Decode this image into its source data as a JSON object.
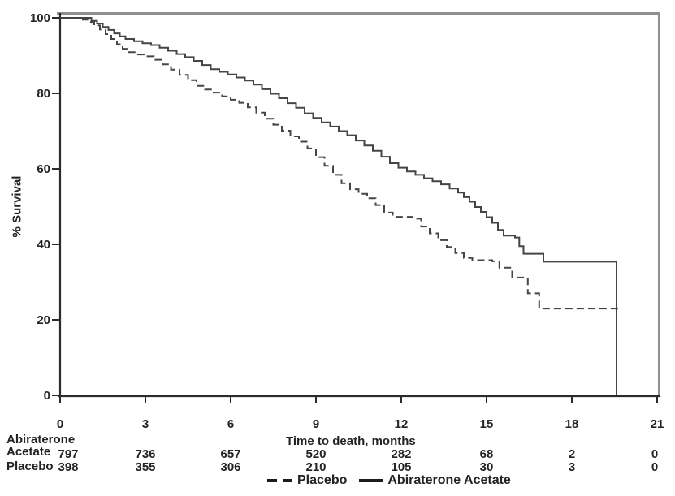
{
  "figure_title": "",
  "axes": {
    "y_title": "% Survival",
    "x_title": "Time to death, months",
    "y_ticks": [
      "100",
      "80",
      "60",
      "40",
      "20",
      "0"
    ],
    "x_ticks": [
      "0",
      "3",
      "6",
      "9",
      "12",
      "15",
      "18",
      "21"
    ]
  },
  "legend": {
    "placebo_label": "Placebo",
    "abiraterone_label": "Abiraterone Acetate"
  },
  "at_risk": {
    "row1_label_line1": "Abiraterone",
    "row1_label_line2": "Acetate",
    "row2_label": "Placebo",
    "rows": [
      {
        "name": "Abiraterone Acetate",
        "counts": [
          "797",
          "736",
          "657",
          "520",
          "282",
          "68",
          "2",
          "0"
        ]
      },
      {
        "name": "Placebo",
        "counts": [
          "398",
          "355",
          "306",
          "210",
          "105",
          "30",
          "3",
          "0"
        ]
      }
    ]
  },
  "colors": {
    "curve": "#454545",
    "frame_gray": "#8f8f8f",
    "axis_black": "#2b2b2b",
    "text": "#232323"
  },
  "chart_data": {
    "type": "line",
    "subtype": "kaplan-meier-step",
    "title": "",
    "xlabel": "Time to death, months",
    "ylabel": "% Survival",
    "xlim": [
      0,
      21
    ],
    "ylim": [
      0,
      100
    ],
    "x_tick_values": [
      0,
      3,
      6,
      9,
      12,
      15,
      18,
      21
    ],
    "y_tick_values": [
      0,
      20,
      40,
      60,
      80,
      100
    ],
    "grid": false,
    "legend_position": "bottom-center",
    "series": [
      {
        "name": "Abiraterone Acetate",
        "style": "solid",
        "n_at_risk": [
          797,
          736,
          657,
          520,
          282,
          68,
          2,
          0
        ],
        "points": [
          [
            0,
            100
          ],
          [
            0.9,
            100
          ],
          [
            1.1,
            99.2
          ],
          [
            1.3,
            98.5
          ],
          [
            1.5,
            97.6
          ],
          [
            1.7,
            96.8
          ],
          [
            1.9,
            95.9
          ],
          [
            2.1,
            95.1
          ],
          [
            2.3,
            94.4
          ],
          [
            2.6,
            93.8
          ],
          [
            2.9,
            93.3
          ],
          [
            3.2,
            92.8
          ],
          [
            3.5,
            92.1
          ],
          [
            3.8,
            91.3
          ],
          [
            4.1,
            90.4
          ],
          [
            4.4,
            89.6
          ],
          [
            4.7,
            88.6
          ],
          [
            5.0,
            87.5
          ],
          [
            5.3,
            86.4
          ],
          [
            5.6,
            85.7
          ],
          [
            5.9,
            85.0
          ],
          [
            6.2,
            84.2
          ],
          [
            6.5,
            83.4
          ],
          [
            6.8,
            82.3
          ],
          [
            7.1,
            81.1
          ],
          [
            7.4,
            79.9
          ],
          [
            7.7,
            78.7
          ],
          [
            8.0,
            77.4
          ],
          [
            8.3,
            76.2
          ],
          [
            8.6,
            74.7
          ],
          [
            8.9,
            73.5
          ],
          [
            9.2,
            72.3
          ],
          [
            9.5,
            71.2
          ],
          [
            9.8,
            70.0
          ],
          [
            10.1,
            68.9
          ],
          [
            10.4,
            67.5
          ],
          [
            10.7,
            66.2
          ],
          [
            11.0,
            64.8
          ],
          [
            11.3,
            63.2
          ],
          [
            11.6,
            61.5
          ],
          [
            11.9,
            60.3
          ],
          [
            12.2,
            59.3
          ],
          [
            12.5,
            58.4
          ],
          [
            12.8,
            57.5
          ],
          [
            13.1,
            56.7
          ],
          [
            13.4,
            55.9
          ],
          [
            13.7,
            54.8
          ],
          [
            14.0,
            53.7
          ],
          [
            14.2,
            52.5
          ],
          [
            14.4,
            51.3
          ],
          [
            14.6,
            49.9
          ],
          [
            14.8,
            48.6
          ],
          [
            15.0,
            47.2
          ],
          [
            15.2,
            45.7
          ],
          [
            15.4,
            43.8
          ],
          [
            15.6,
            42.3
          ],
          [
            16.0,
            41.8
          ],
          [
            16.15,
            39.5
          ],
          [
            16.3,
            37.5
          ],
          [
            17.0,
            35.4
          ],
          [
            19.57,
            35.4
          ],
          [
            19.57,
            0
          ]
        ]
      },
      {
        "name": "Placebo",
        "style": "dashed",
        "n_at_risk": [
          398,
          355,
          306,
          210,
          105,
          30,
          3,
          0
        ],
        "points": [
          [
            0,
            100
          ],
          [
            0.8,
            99.5
          ],
          [
            1.0,
            98.9
          ],
          [
            1.2,
            98.0
          ],
          [
            1.4,
            96.9
          ],
          [
            1.6,
            95.7
          ],
          [
            1.8,
            94.4
          ],
          [
            2.0,
            93.0
          ],
          [
            2.2,
            91.8
          ],
          [
            2.4,
            90.9
          ],
          [
            2.7,
            90.3
          ],
          [
            3.0,
            89.8
          ],
          [
            3.3,
            88.9
          ],
          [
            3.6,
            87.7
          ],
          [
            3.9,
            86.3
          ],
          [
            4.2,
            84.9
          ],
          [
            4.5,
            83.5
          ],
          [
            4.8,
            82.0
          ],
          [
            5.1,
            81.0
          ],
          [
            5.4,
            80.2
          ],
          [
            5.7,
            79.2
          ],
          [
            6.0,
            78.3
          ],
          [
            6.3,
            77.5
          ],
          [
            6.6,
            76.3
          ],
          [
            6.9,
            74.9
          ],
          [
            7.2,
            73.3
          ],
          [
            7.5,
            71.7
          ],
          [
            7.8,
            70.1
          ],
          [
            8.1,
            68.6
          ],
          [
            8.4,
            67.2
          ],
          [
            8.7,
            65.4
          ],
          [
            9.0,
            63.1
          ],
          [
            9.3,
            60.8
          ],
          [
            9.6,
            58.4
          ],
          [
            9.9,
            56.2
          ],
          [
            10.2,
            54.6
          ],
          [
            10.5,
            53.4
          ],
          [
            10.8,
            52.2
          ],
          [
            11.1,
            50.4
          ],
          [
            11.4,
            48.4
          ],
          [
            11.7,
            47.3
          ],
          [
            12.4,
            46.8
          ],
          [
            12.7,
            44.7
          ],
          [
            13.0,
            42.9
          ],
          [
            13.3,
            41.1
          ],
          [
            13.6,
            39.3
          ],
          [
            13.9,
            37.7
          ],
          [
            14.2,
            36.4
          ],
          [
            14.5,
            35.8
          ],
          [
            15.2,
            35.5
          ],
          [
            15.45,
            33.8
          ],
          [
            15.9,
            31.2
          ],
          [
            16.45,
            27.0
          ],
          [
            16.85,
            23.0
          ],
          [
            19.75,
            23.0
          ]
        ]
      }
    ]
  }
}
